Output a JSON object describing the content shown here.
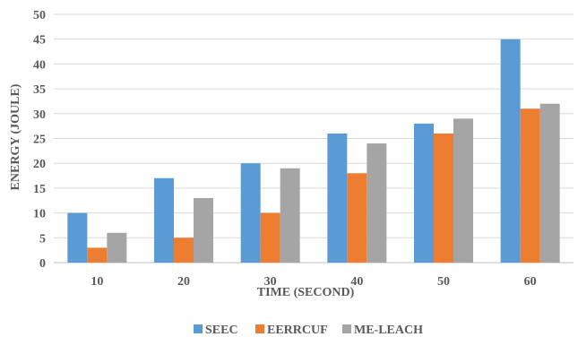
{
  "chart_data": {
    "type": "bar",
    "title": "",
    "xlabel": "TIME (SECOND)",
    "ylabel": "ENERGY (JOULE)",
    "categories": [
      "10",
      "20",
      "30",
      "40",
      "50",
      "60"
    ],
    "series": [
      {
        "name": "SEEC",
        "color": "#5b9bd5",
        "values": [
          10,
          17,
          20,
          26,
          28,
          45
        ]
      },
      {
        "name": "EERRCUF",
        "color": "#ed7d31",
        "values": [
          3,
          5,
          10,
          18,
          26,
          31
        ]
      },
      {
        "name": "ME-LEACH",
        "color": "#a5a5a5",
        "values": [
          6,
          13,
          19,
          24,
          29,
          32
        ]
      }
    ],
    "ylim": [
      0,
      50
    ],
    "yticks": [
      "0",
      "5",
      "10",
      "15",
      "20",
      "25",
      "30",
      "35",
      "40",
      "45",
      "50"
    ],
    "grid": true,
    "legend_position": "bottom"
  }
}
